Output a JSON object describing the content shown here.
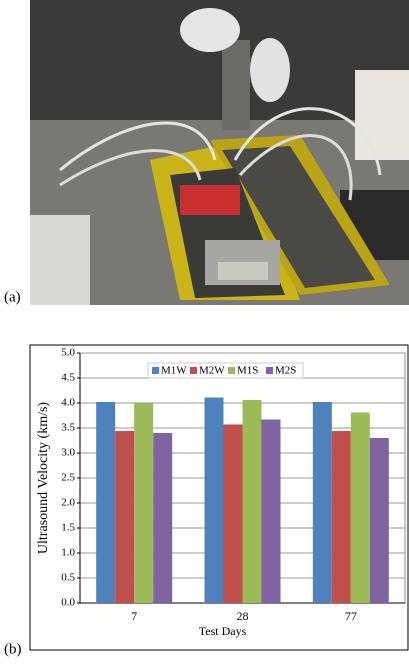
{
  "panel_a": {
    "label": "(a)"
  },
  "panel_b": {
    "label": "(b)"
  },
  "chart_data": {
    "type": "bar",
    "y_label": "Ultrasound Velocity (km/s)",
    "x_label": "Test Days",
    "categories": [
      "7",
      "28",
      "77"
    ],
    "series": [
      {
        "name": "M1W",
        "color": "#4f81bd",
        "values": [
          4.02,
          4.11,
          4.02
        ]
      },
      {
        "name": "M2W",
        "color": "#c0504d",
        "values": [
          3.44,
          3.57,
          3.44
        ]
      },
      {
        "name": "M1S",
        "color": "#9bbb59",
        "values": [
          3.99,
          4.06,
          3.81
        ]
      },
      {
        "name": "M2S",
        "color": "#8064a2",
        "values": [
          3.4,
          3.67,
          3.3
        ]
      }
    ],
    "ylim": [
      0,
      5
    ],
    "yticks": [
      {
        "value": 0,
        "label": "0.0"
      },
      {
        "value": 0.5,
        "label": "0.5"
      },
      {
        "value": 1,
        "label": "1.0"
      },
      {
        "value": 1.5,
        "label": "1.5"
      },
      {
        "value": 2,
        "label": "2.0"
      },
      {
        "value": 2.5,
        "label": "2.5"
      },
      {
        "value": 3,
        "label": "3.0"
      },
      {
        "value": 3.5,
        "label": "3.5"
      },
      {
        "value": 4,
        "label": "4.0"
      },
      {
        "value": 4.5,
        "label": "4.5"
      },
      {
        "value": 5,
        "label": "5.0"
      }
    ],
    "grid": true,
    "legend": "top"
  }
}
